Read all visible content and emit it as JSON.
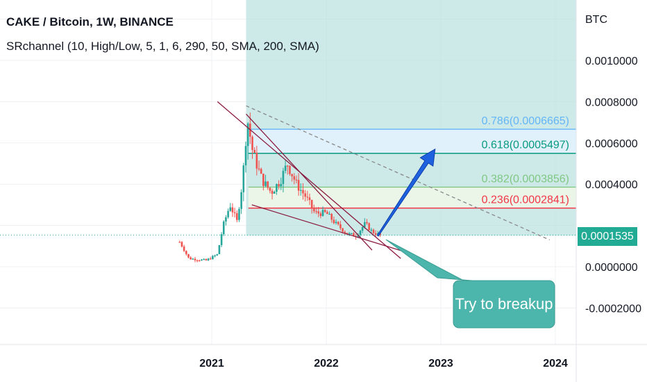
{
  "header": {
    "title": "CAKE / Bitcoin, 1W, BINANCE",
    "indicator": "SRchannel (10, High/Low, 5, 1, 6, 290, 50, SMA, 200, SMA)"
  },
  "price_axis": {
    "unit": "BTC",
    "labels": [
      "0.0010000",
      "0.0008000",
      "0.0006000",
      "0.0004000",
      "0.0000000",
      "-0.0002000"
    ],
    "current_price": "0.0001535"
  },
  "time_axis": {
    "labels": [
      "2021",
      "2022",
      "2023",
      "2024"
    ]
  },
  "annotation": {
    "text": "Try to breakup"
  },
  "colors": {
    "up": "#26a69a",
    "down": "#ef5350",
    "target_zone": "#b2dfdb",
    "price_tag": "#22ab94",
    "callout": "#4db6ac",
    "arrow": "#1e62e0",
    "trendline": "#8b1a3f"
  },
  "chart_data": {
    "type": "candlestick",
    "title": "CAKE / Bitcoin, 1W, BINANCE",
    "ylabel": "BTC",
    "ylim": [
      -0.00036,
      0.00123
    ],
    "xlim": [
      2020.0,
      2024.3
    ],
    "current_price": 0.0001535,
    "fib_levels": [
      {
        "ratio": "0.786",
        "value": 0.0006665,
        "label": "0.786(0.0006665)",
        "color": "#64b5f6"
      },
      {
        "ratio": "0.618",
        "value": 0.0005497,
        "label": "0.618(0.0005497)",
        "color": "#089981"
      },
      {
        "ratio": "0.382",
        "value": 0.0003856,
        "label": "0.382(0.0003856)",
        "color": "#81c784"
      },
      {
        "ratio": "0.236",
        "value": 0.0002841,
        "label": "0.236(0.0002841)",
        "color": "#f23645"
      }
    ],
    "anchors": [
      {
        "date": 2020.72,
        "price": 0.00012
      },
      {
        "date": 2020.8,
        "price": 4e-05
      },
      {
        "date": 2020.95,
        "price": 3e-05
      },
      {
        "date": 2021.05,
        "price": 6e-05
      },
      {
        "date": 2021.1,
        "price": 0.0002
      },
      {
        "date": 2021.16,
        "price": 0.0003
      },
      {
        "date": 2021.22,
        "price": 0.00022
      },
      {
        "date": 2021.27,
        "price": 0.00042
      },
      {
        "date": 2021.31,
        "price": 0.00072
      },
      {
        "date": 2021.36,
        "price": 0.00055
      },
      {
        "date": 2021.44,
        "price": 0.00042
      },
      {
        "date": 2021.52,
        "price": 0.00036
      },
      {
        "date": 2021.6,
        "price": 0.00042
      },
      {
        "date": 2021.66,
        "price": 0.0005
      },
      {
        "date": 2021.74,
        "price": 0.0004
      },
      {
        "date": 2021.82,
        "price": 0.00034
      },
      {
        "date": 2021.9,
        "price": 0.00026
      },
      {
        "date": 2022.0,
        "price": 0.00026
      },
      {
        "date": 2022.08,
        "price": 0.00021
      },
      {
        "date": 2022.18,
        "price": 0.00016
      },
      {
        "date": 2022.26,
        "price": 0.00015
      },
      {
        "date": 2022.34,
        "price": 0.00021
      },
      {
        "date": 2022.4,
        "price": 0.00017
      },
      {
        "date": 2022.48,
        "price": 0.00015
      }
    ],
    "lines": [
      {
        "name": "upper-trendline",
        "x": [
          2021.05,
          2022.65
        ],
        "y": [
          0.0008,
          4e-05
        ],
        "style": "solid",
        "color": "#8b1a3f"
      },
      {
        "name": "lower-trendline",
        "x": [
          2021.35,
          2022.7
        ],
        "y": [
          0.0003,
          7e-05
        ],
        "style": "solid",
        "color": "#8b1a3f"
      },
      {
        "name": "steep-trendline",
        "x": [
          2021.3,
          2022.4
        ],
        "y": [
          0.00074,
          8e-05
        ],
        "style": "solid",
        "color": "#8b1a3f"
      },
      {
        "name": "dashed-projection",
        "x": [
          2021.3,
          2023.95
        ],
        "y": [
          0.00078,
          0.00013
        ],
        "style": "dashed",
        "color": "#888888"
      }
    ],
    "target_zone": {
      "x_start": 2021.3,
      "y_min": 0.00015,
      "y_max": 0.00123
    },
    "breakout_arrow": {
      "from": [
        2022.45,
        0.00015
      ],
      "to": [
        2022.95,
        0.00057
      ]
    },
    "grid": true
  }
}
